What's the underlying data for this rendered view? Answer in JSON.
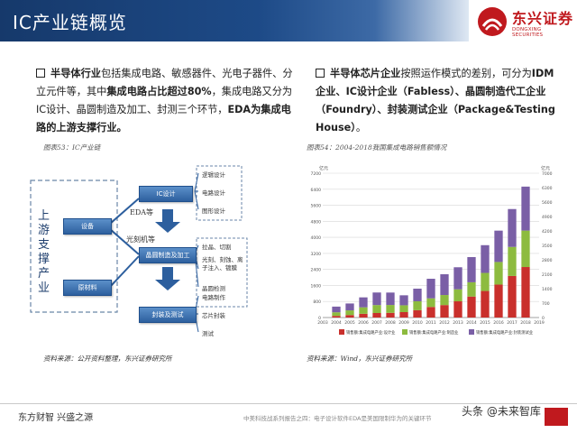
{
  "header": {
    "title": "IC产业链概览"
  },
  "logo": {
    "name_cn": "东兴证券",
    "name_en": "DONGXING SECURITIES",
    "color": "#c0191e"
  },
  "left": {
    "bold1": "半导体行业",
    "text1": "包括集成电路、敏感器件、光电子器件、分立元件等，其中",
    "bold2": "集成电路占比超过80%",
    "text2": "，集成电路又分为IC设计、晶圆制造及加工、封测三个环节，",
    "bold3": "EDA为集成电路的上游支撑行业。",
    "caption": "图表53：IC产业链",
    "source": "资料来源：公开资料整理，东兴证券研究所"
  },
  "right": {
    "bold1": "半导体芯片企业",
    "text1": "按照运作模式的差别，可分为",
    "bold2": "IDM企业、IC设计企业（Fabless）、晶圆制造代工企业（Foundry）、封装测试企业（Package&Testing House）",
    "text2": "。",
    "caption": "图表54：2004-2018我国集成电路销售额情况",
    "source": "资料来源：Wind，东兴证券研究所"
  },
  "diagram": {
    "upstream_label": "上游支撑产业",
    "equipment": "设备",
    "materials": "原材料",
    "ic_design": "IC设计",
    "wafer": "晶圆制造及加工",
    "packaging": "封装及测试",
    "eda_label": "EDA等",
    "litho_label": "光刻机等",
    "design_items": [
      "逻辑设计",
      "电路设计",
      "图形设计"
    ],
    "wafer_items": [
      "拉晶、切割",
      "光刻、刻蚀、离子注入、镀膜",
      "晶圆检测"
    ],
    "pack_items": [
      "电路制作",
      "芯片封装",
      "测试"
    ]
  },
  "chart_data": {
    "type": "bar",
    "stacked": true,
    "title": "",
    "categories": [
      "2004",
      "2005",
      "2006",
      "2007",
      "2008",
      "2009",
      "2010",
      "2011",
      "2012",
      "2013",
      "2014",
      "2015",
      "2016",
      "2017",
      "2018"
    ],
    "series": [
      {
        "name": "销售额:集成电路产业:设计业",
        "color": "#c9302c",
        "values": [
          82,
          124,
          187,
          225,
          235,
          270,
          364,
          527,
          622,
          809,
          1047,
          1325,
          1644,
          2074,
          2519
        ]
      },
      {
        "name": "销售额:集成电路产业:制造业",
        "color": "#8dbb3f",
        "values": [
          180,
          233,
          323,
          397,
          392,
          341,
          447,
          431,
          501,
          600,
          712,
          901,
          1127,
          1448,
          1818
        ]
      },
      {
        "name": "销售额:集成电路产业:封装测试业",
        "color": "#7a5fa6",
        "values": [
          283,
          344,
          496,
          627,
          619,
          498,
          630,
          976,
          1036,
          1099,
          1256,
          1384,
          1564,
          1890,
          2194
        ]
      }
    ],
    "ylim": [
      0,
      7200
    ],
    "yticks": [
      0,
      800,
      1600,
      2400,
      3200,
      4000,
      4800,
      5600,
      6400,
      7200
    ],
    "ytick_labels": [
      "0",
      "800",
      "1600",
      "2400",
      "3200",
      "4000",
      "4800",
      "5600",
      "6400",
      "7200"
    ],
    "y2ticks": [
      0,
      700,
      1400,
      2100,
      2800,
      3500,
      4200,
      4900,
      5600,
      6300,
      7000
    ],
    "ylabel": "亿元",
    "y2label": "亿元",
    "xticks": [
      "2003",
      "2004",
      "2005",
      "2006",
      "2007",
      "2008",
      "2009",
      "2010",
      "2011",
      "2012",
      "2013",
      "2014",
      "2015",
      "2016",
      "2017",
      "2018",
      "2019"
    ],
    "grid": true,
    "legend": "bottom"
  },
  "footer": {
    "left": "东方财智 兴盛之源",
    "center": "中美科技战系列报告之四：电子设计软件EDA是美国限制华为的关键环节",
    "watermark": "头条 @未来智库"
  }
}
